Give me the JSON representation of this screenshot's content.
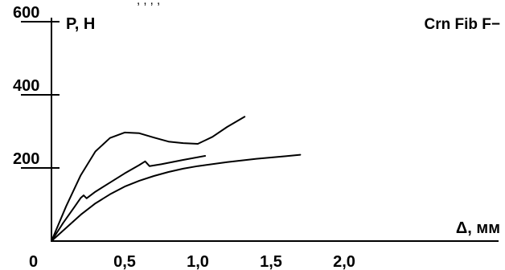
{
  "chart_data": {
    "type": "line",
    "title": "Crn Fib F−",
    "ylabel": "P, H",
    "xlabel": "Δ, мм",
    "origin_label": "0",
    "clipped_header_text": ", , , ,",
    "xlim": [
      0,
      2.4
    ],
    "ylim": [
      0,
      600
    ],
    "grid": false,
    "legend": "none",
    "x_ticks": [
      {
        "value": 0.5,
        "label": "0,5"
      },
      {
        "value": 1.0,
        "label": "1,0"
      },
      {
        "value": 1.5,
        "label": "1,5"
      },
      {
        "value": 2.0,
        "label": "2,0"
      }
    ],
    "y_ticks": [
      {
        "value": 200,
        "label": "200"
      },
      {
        "value": 400,
        "label": "400"
      },
      {
        "value": 600,
        "label": "600"
      }
    ],
    "series": [
      {
        "x": [
          0,
          0.1,
          0.2,
          0.3,
          0.4,
          0.5,
          0.6,
          0.7,
          0.8,
          0.9,
          1.0,
          1.1,
          1.2,
          1.32
        ],
        "y": [
          0,
          95,
          180,
          245,
          282,
          297,
          295,
          283,
          272,
          268,
          266,
          285,
          312,
          340
        ]
      },
      {
        "x": [
          0,
          0.08,
          0.16,
          0.2,
          0.22,
          0.24,
          0.3,
          0.4,
          0.5,
          0.6,
          0.64,
          0.67,
          0.75,
          0.9,
          1.05
        ],
        "y": [
          0,
          50,
          95,
          118,
          125,
          117,
          135,
          160,
          185,
          208,
          218,
          205,
          210,
          222,
          233
        ]
      },
      {
        "x": [
          0,
          0.1,
          0.2,
          0.3,
          0.4,
          0.5,
          0.6,
          0.7,
          0.8,
          0.9,
          1.0,
          1.2,
          1.4,
          1.6,
          1.7
        ],
        "y": [
          0,
          36,
          72,
          103,
          128,
          149,
          165,
          178,
          189,
          198,
          205,
          216,
          225,
          232,
          236
        ]
      }
    ]
  }
}
